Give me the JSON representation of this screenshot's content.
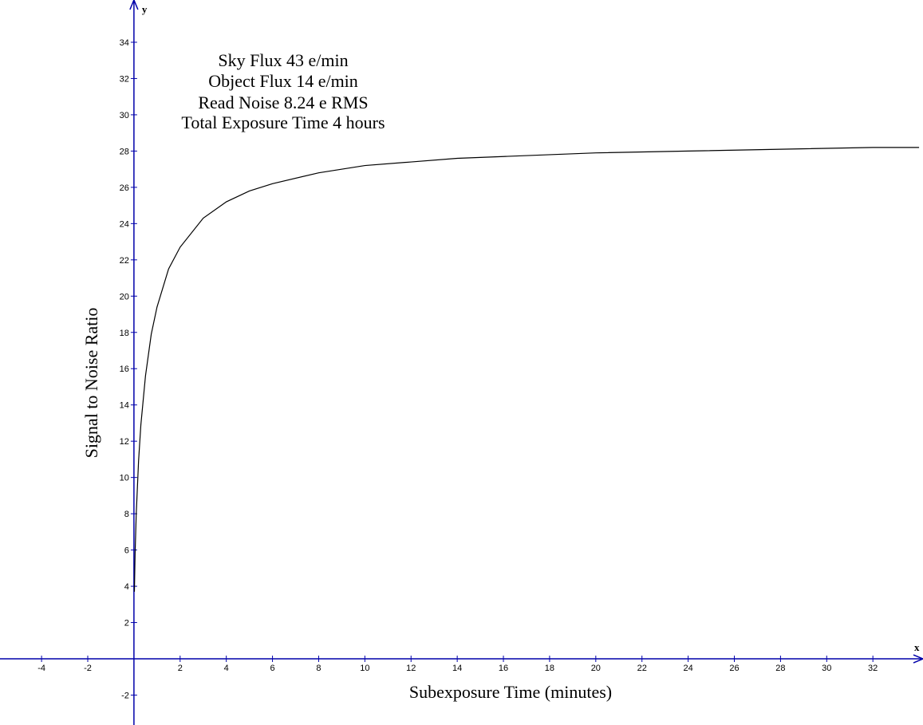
{
  "chart_data": {
    "type": "line",
    "annotation": [
      "Sky Flux 43 e/min",
      "Object Flux 14 e/min",
      "Read Noise 8.24 e RMS",
      "Total Exposure Time 4 hours"
    ],
    "x_label": "Subexposure Time (minutes)",
    "y_label": "Signal to Noise Ratio",
    "x_axis_name": "x",
    "y_axis_name": "y",
    "x": [
      0.02,
      0.05,
      0.1,
      0.2,
      0.3,
      0.5,
      0.75,
      1,
      1.5,
      2,
      3,
      4,
      5,
      6,
      8,
      10,
      12,
      14,
      16,
      20,
      24,
      28,
      32,
      34
    ],
    "series": [
      {
        "color": "#000000",
        "values": [
          3.7,
          5.8,
          8.0,
          10.9,
          12.9,
          15.6,
          17.9,
          19.4,
          21.5,
          22.7,
          24.3,
          25.2,
          25.8,
          26.2,
          26.8,
          27.2,
          27.4,
          27.6,
          27.7,
          27.9,
          28.0,
          28.1,
          28.2,
          28.2
        ]
      }
    ],
    "xlim": [
      -5.8,
      34.17
    ],
    "ylim": [
      -3.65,
      36.33
    ],
    "xticks": [
      -4,
      -2,
      2,
      4,
      6,
      8,
      10,
      12,
      14,
      16,
      18,
      20,
      22,
      24,
      26,
      28,
      30,
      32
    ],
    "yticks": [
      -2,
      2,
      4,
      6,
      8,
      10,
      12,
      14,
      16,
      18,
      20,
      22,
      24,
      26,
      28,
      30,
      32,
      34
    ],
    "axis_color": "#0000aa"
  }
}
